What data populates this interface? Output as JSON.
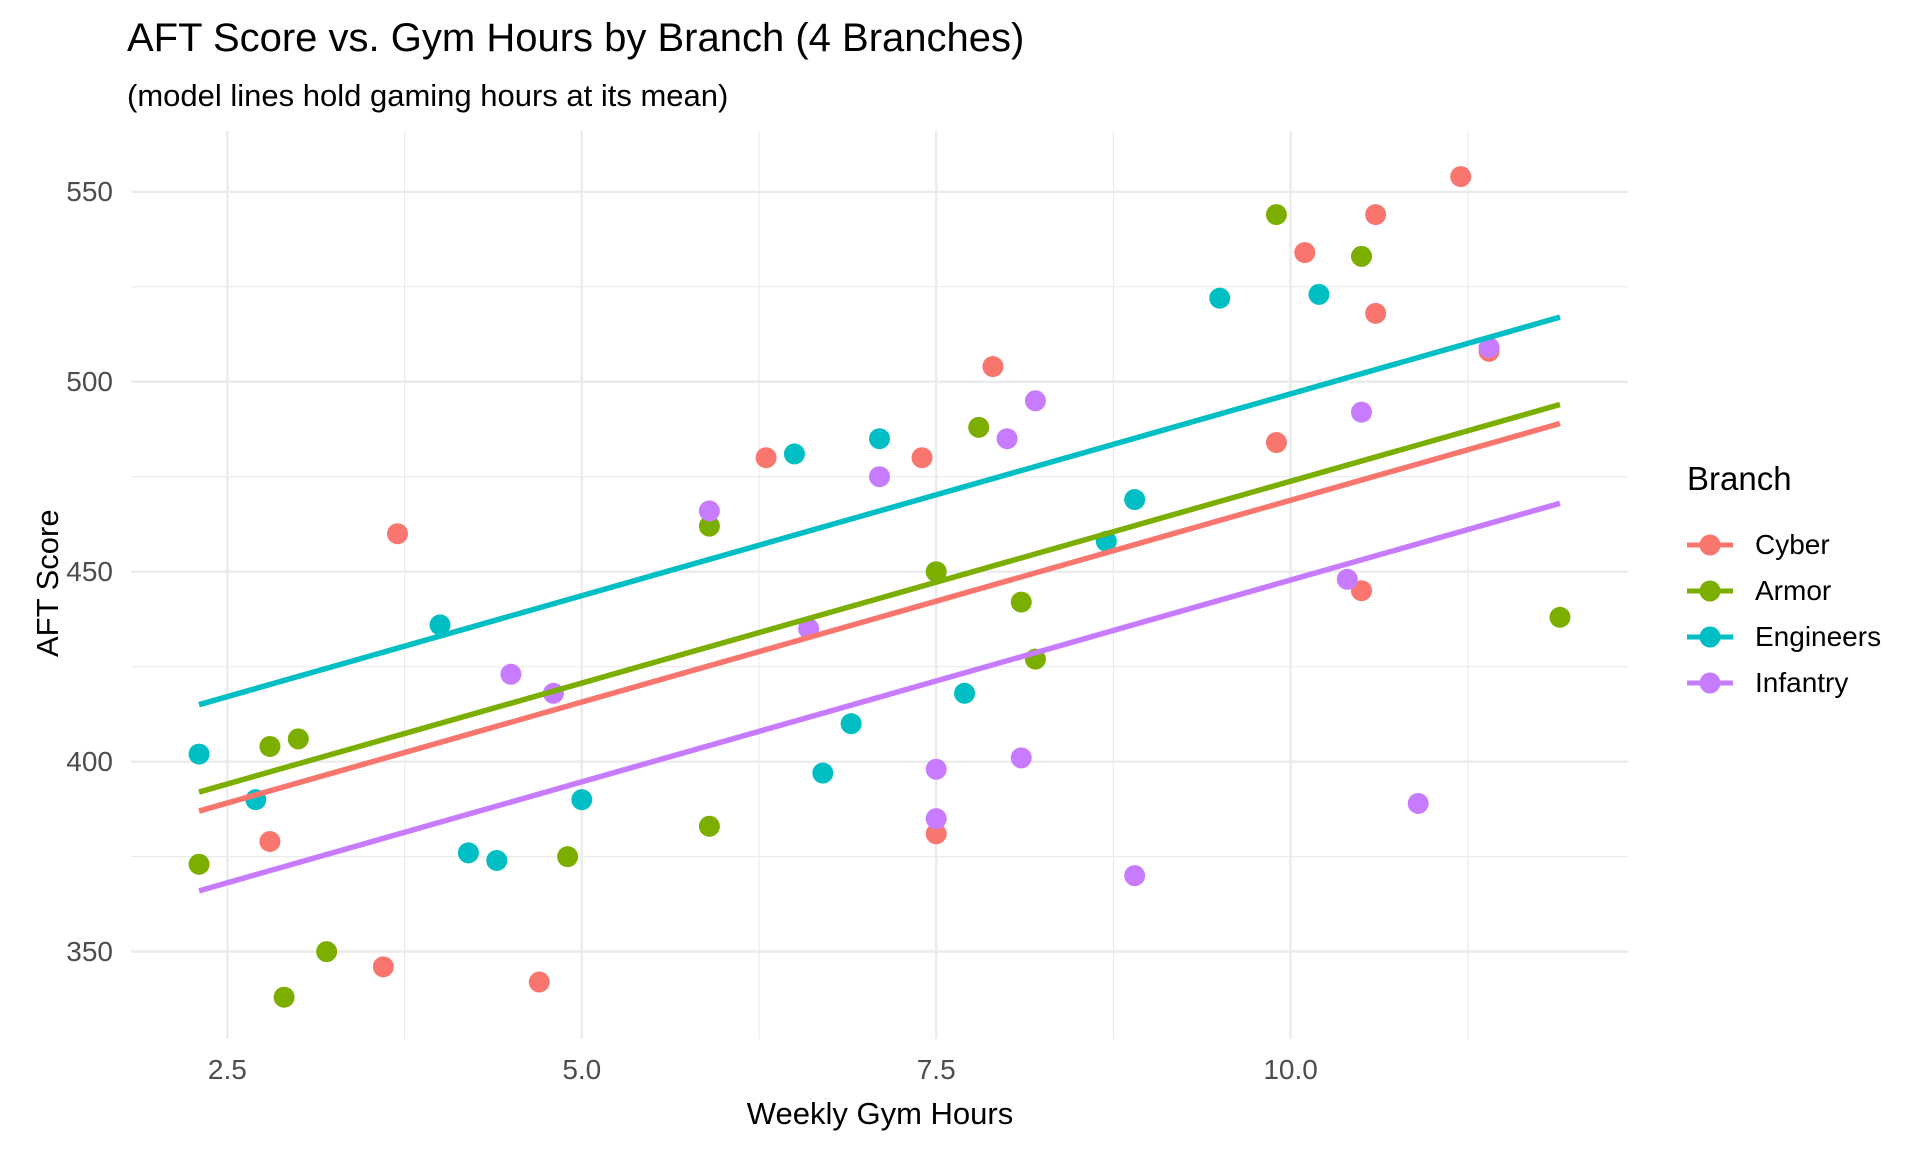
{
  "style": {
    "background": "#FFFFFF",
    "grid_color": "#EBEBEB",
    "tick_label_color": "#4D4D4D",
    "text_color": "#000000"
  },
  "legend": {
    "title": "Branch",
    "items": [
      {
        "label": "Cyber",
        "color": "#F8766D"
      },
      {
        "label": "Armor",
        "color": "#7CAE00"
      },
      {
        "label": "Engineers",
        "color": "#00BFC4"
      },
      {
        "label": "Infantry",
        "color": "#C77CFF"
      }
    ]
  },
  "chart_data": {
    "type": "scatter",
    "title": "AFT Score vs. Gym Hours by Branch (4 Branches)",
    "subtitle": "(model lines hold gaming hours at its mean)",
    "xlabel": "Weekly Gym Hours",
    "ylabel": "AFT Score",
    "xlim": [
      1.82,
      12.38
    ],
    "ylim": [
      327,
      566
    ],
    "grid": true,
    "legend_position": "right",
    "x_ticks": [
      2.5,
      5.0,
      7.5,
      10.0
    ],
    "x_tick_labels": [
      "2.5",
      "5.0",
      "7.5",
      "10.0"
    ],
    "x_minor": [
      3.75,
      6.25,
      8.75,
      11.25
    ],
    "y_ticks": [
      350,
      400,
      450,
      500,
      550
    ],
    "y_tick_labels": [
      "350",
      "400",
      "450",
      "500",
      "550"
    ],
    "y_minor": [
      375,
      425,
      475,
      525
    ],
    "series": [
      {
        "name": "Cyber",
        "color": "#F8766D",
        "points": [
          [
            2.8,
            379
          ],
          [
            3.6,
            346
          ],
          [
            3.7,
            460
          ],
          [
            4.7,
            342
          ],
          [
            6.3,
            480
          ],
          [
            7.4,
            480
          ],
          [
            7.5,
            381
          ],
          [
            7.9,
            504
          ],
          [
            9.9,
            484
          ],
          [
            10.1,
            534
          ],
          [
            10.5,
            445
          ],
          [
            10.6,
            544
          ],
          [
            10.6,
            518
          ],
          [
            11.2,
            554
          ],
          [
            11.4,
            508
          ]
        ],
        "trend_line": {
          "x1": 2.3,
          "y1": 387,
          "x2": 11.9,
          "y2": 489
        }
      },
      {
        "name": "Armor",
        "color": "#7CAE00",
        "points": [
          [
            2.3,
            373
          ],
          [
            2.8,
            404
          ],
          [
            2.9,
            338
          ],
          [
            3.0,
            406
          ],
          [
            3.2,
            350
          ],
          [
            4.9,
            375
          ],
          [
            5.9,
            383
          ],
          [
            5.9,
            462
          ],
          [
            7.5,
            450
          ],
          [
            7.8,
            488
          ],
          [
            8.1,
            442
          ],
          [
            8.2,
            427
          ],
          [
            9.9,
            544
          ],
          [
            10.5,
            533
          ],
          [
            11.9,
            438
          ]
        ],
        "trend_line": {
          "x1": 2.3,
          "y1": 392,
          "x2": 11.9,
          "y2": 494
        }
      },
      {
        "name": "Engineers",
        "color": "#00BFC4",
        "points": [
          [
            2.3,
            402
          ],
          [
            2.7,
            390
          ],
          [
            4.0,
            436
          ],
          [
            4.2,
            376
          ],
          [
            4.4,
            374
          ],
          [
            5.0,
            390
          ],
          [
            6.5,
            481
          ],
          [
            6.7,
            397
          ],
          [
            6.9,
            410
          ],
          [
            7.1,
            485
          ],
          [
            7.7,
            418
          ],
          [
            8.7,
            458
          ],
          [
            8.9,
            469
          ],
          [
            9.5,
            522
          ],
          [
            10.2,
            523
          ]
        ],
        "trend_line": {
          "x1": 2.3,
          "y1": 415,
          "x2": 11.9,
          "y2": 517
        }
      },
      {
        "name": "Infantry",
        "color": "#C77CFF",
        "points": [
          [
            4.5,
            423
          ],
          [
            4.8,
            418
          ],
          [
            5.9,
            466
          ],
          [
            6.6,
            435
          ],
          [
            7.1,
            475
          ],
          [
            7.5,
            385
          ],
          [
            7.5,
            398
          ],
          [
            8.0,
            485
          ],
          [
            8.1,
            401
          ],
          [
            8.2,
            495
          ],
          [
            8.9,
            370
          ],
          [
            10.4,
            448
          ],
          [
            10.5,
            492
          ],
          [
            10.9,
            389
          ],
          [
            11.4,
            509
          ]
        ],
        "trend_line": {
          "x1": 2.3,
          "y1": 366,
          "x2": 11.9,
          "y2": 468
        }
      }
    ]
  }
}
